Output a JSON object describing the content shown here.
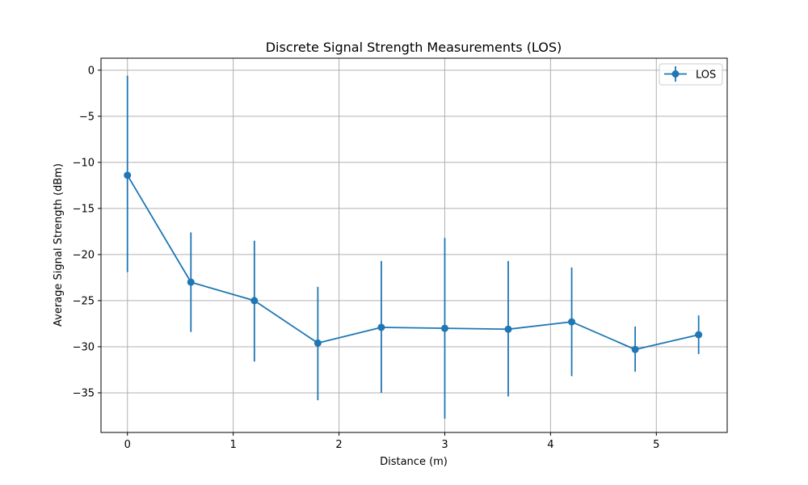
{
  "chart_data": {
    "type": "line",
    "title": "Discrete Signal Strength Measurements (LOS)",
    "xlabel": "Distance (m)",
    "ylabel": "Average Signal Strength (dBm)",
    "xlim": [
      -0.25,
      5.67
    ],
    "ylim": [
      -39.3,
      1.3
    ],
    "x_ticks": [
      0,
      1,
      2,
      3,
      4,
      5
    ],
    "x_tick_labels": [
      "0",
      "1",
      "2",
      "3",
      "4",
      "5"
    ],
    "y_ticks": [
      0,
      -5,
      -10,
      -15,
      -20,
      -25,
      -30,
      -35
    ],
    "y_tick_labels": [
      "0",
      "−5",
      "−10",
      "−15",
      "−20",
      "−25",
      "−30",
      "−35"
    ],
    "grid": true,
    "legend_position": "top-right",
    "colors": {
      "series": "#1f77b4",
      "grid": "#b0b0b0"
    },
    "series": [
      {
        "name": "LOS",
        "x": [
          0.0,
          0.6,
          1.2,
          1.8,
          2.4,
          3.0,
          3.6,
          4.2,
          4.8,
          5.4
        ],
        "y": [
          -11.4,
          -23.0,
          -25.0,
          -29.6,
          -27.9,
          -28.0,
          -28.1,
          -27.3,
          -30.3,
          -28.7
        ],
        "err_low": [
          -21.9,
          -28.4,
          -31.6,
          -35.8,
          -35.0,
          -37.8,
          -35.4,
          -33.2,
          -32.7,
          -30.8
        ],
        "err_high": [
          -0.6,
          -17.6,
          -18.5,
          -23.5,
          -20.7,
          -18.2,
          -20.7,
          -21.4,
          -27.8,
          -26.6
        ]
      }
    ]
  }
}
